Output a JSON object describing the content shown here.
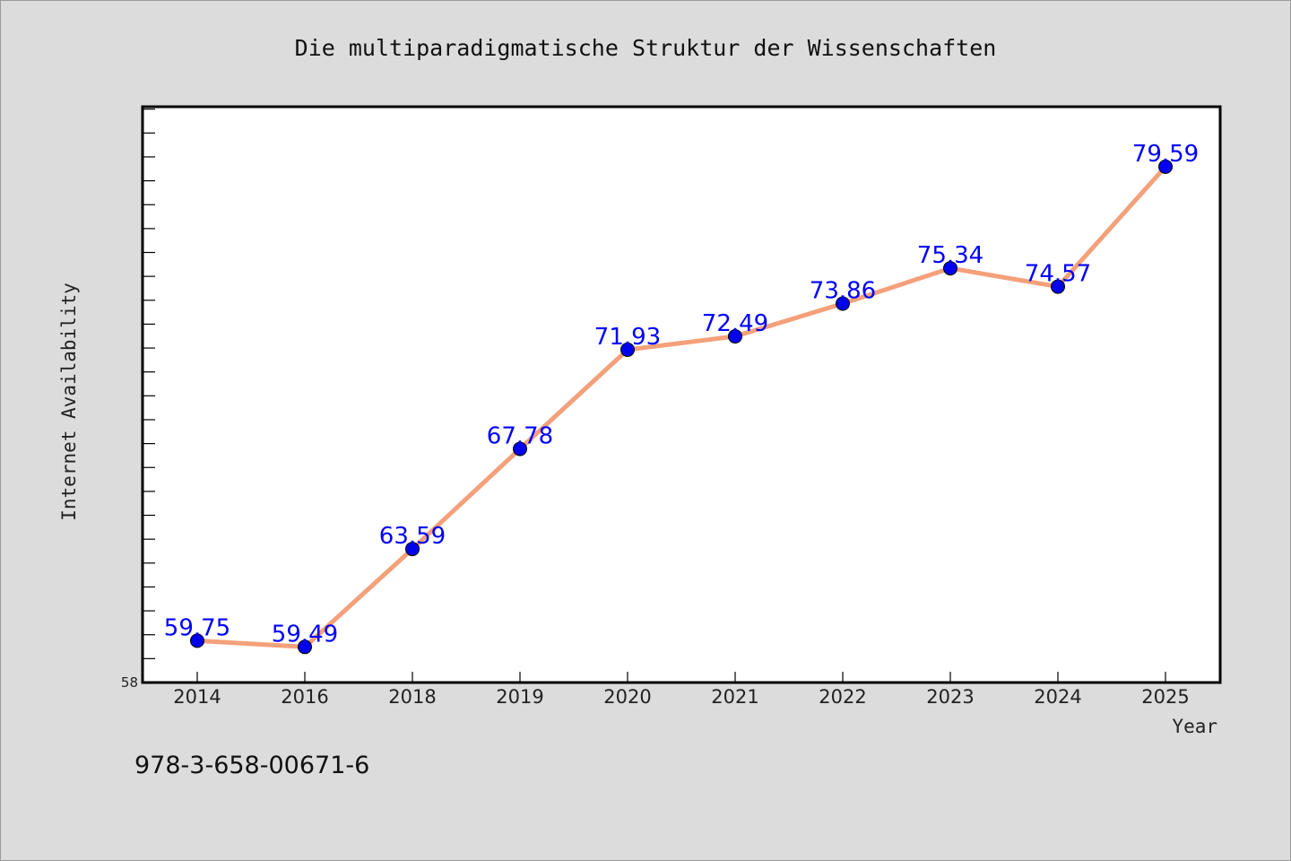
{
  "chart_data": {
    "type": "line",
    "title": "Die multiparadigmatische Struktur der Wissenschaften",
    "xlabel": "Year",
    "ylabel": "Internet Availability",
    "categories": [
      "2014",
      "2016",
      "2018",
      "2019",
      "2020",
      "2021",
      "2022",
      "2023",
      "2024",
      "2025"
    ],
    "series": [
      {
        "values": [
          59.75,
          59.49,
          63.59,
          67.78,
          71.93,
          72.49,
          73.86,
          75.34,
          74.57,
          79.59
        ],
        "data_labels": [
          "59.75",
          "59.49",
          "63.59",
          "67.78",
          "71.93",
          "72.49",
          "73.86",
          "75.34",
          "74.57",
          "79.59"
        ]
      }
    ],
    "ylim": [
      58,
      82.1
    ],
    "ytick_labels": [
      "58"
    ],
    "grid": false,
    "legend": "none",
    "colors": {
      "line": "#f4a07a",
      "marker": "#0000ee",
      "label": "#0000ff",
      "background": "#dcdcdc",
      "plot_background": "#ffffff"
    }
  },
  "footer": {
    "isbn": "978-3-658-00671-6"
  }
}
